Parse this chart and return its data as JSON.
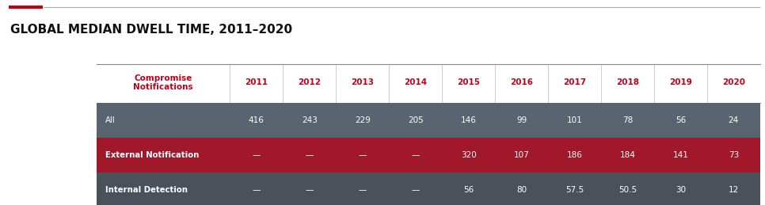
{
  "title": "GLOBAL MEDIAN DWELL TIME, 2011–2020",
  "title_fontsize": 11,
  "accent_color": "#c0001a",
  "separator_line_color": "#aaaaaa",
  "bg_color": "#ffffff",
  "years": [
    "2011",
    "2012",
    "2013",
    "2014",
    "2015",
    "2016",
    "2017",
    "2018",
    "2019",
    "2020"
  ],
  "header_label": "Compromise\nNotifications",
  "header_text_color": "#c0001a",
  "header_year_color": "#c0001a",
  "rows": [
    {
      "label": "All",
      "values": [
        "416",
        "243",
        "229",
        "205",
        "146",
        "99",
        "101",
        "78",
        "56",
        "24"
      ],
      "bg_color": "#5a6370",
      "text_color": "#ffffff",
      "label_bold": false
    },
    {
      "label": "External Notification",
      "values": [
        "—",
        "—",
        "—",
        "—",
        "320",
        "107",
        "186",
        "184",
        "141",
        "73"
      ],
      "bg_color": "#a0182a",
      "text_color": "#ffffff",
      "label_bold": true
    },
    {
      "label": "Internal Detection",
      "values": [
        "—",
        "—",
        "—",
        "—",
        "56",
        "80",
        "57.5",
        "50.5",
        "30",
        "12"
      ],
      "bg_color": "#4a515a",
      "text_color": "#ffffff",
      "label_bold": true
    }
  ]
}
